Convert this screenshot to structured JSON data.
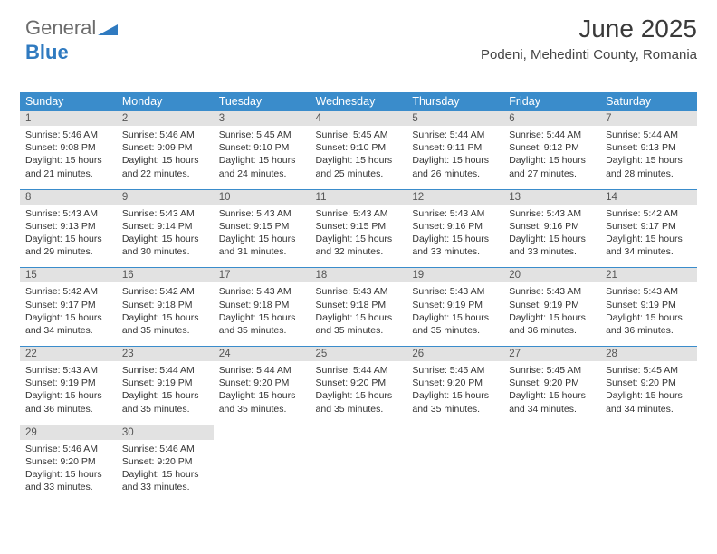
{
  "logo": {
    "word1": "General",
    "word2": "Blue"
  },
  "header": {
    "title": "June 2025",
    "subtitle": "Podeni, Mehedinti County, Romania"
  },
  "style": {
    "header_bg": "#3a8ccb",
    "header_fg": "#ffffff",
    "daynum_bg": "#e2e2e2",
    "daynum_fg": "#555555",
    "body_fg": "#333333",
    "divider": "#3a8ccb",
    "page_bg": "#ffffff",
    "title_fontsize": 28,
    "subtitle_fontsize": 15,
    "dayhead_fontsize": 12.5,
    "daynum_fontsize": 11.5,
    "cell_fontsize": 10.5
  },
  "weekdays": [
    "Sunday",
    "Monday",
    "Tuesday",
    "Wednesday",
    "Thursday",
    "Friday",
    "Saturday"
  ],
  "weeks": [
    [
      {
        "n": "1",
        "sr": "Sunrise: 5:46 AM",
        "ss": "Sunset: 9:08 PM",
        "dl": "Daylight: 15 hours and 21 minutes."
      },
      {
        "n": "2",
        "sr": "Sunrise: 5:46 AM",
        "ss": "Sunset: 9:09 PM",
        "dl": "Daylight: 15 hours and 22 minutes."
      },
      {
        "n": "3",
        "sr": "Sunrise: 5:45 AM",
        "ss": "Sunset: 9:10 PM",
        "dl": "Daylight: 15 hours and 24 minutes."
      },
      {
        "n": "4",
        "sr": "Sunrise: 5:45 AM",
        "ss": "Sunset: 9:10 PM",
        "dl": "Daylight: 15 hours and 25 minutes."
      },
      {
        "n": "5",
        "sr": "Sunrise: 5:44 AM",
        "ss": "Sunset: 9:11 PM",
        "dl": "Daylight: 15 hours and 26 minutes."
      },
      {
        "n": "6",
        "sr": "Sunrise: 5:44 AM",
        "ss": "Sunset: 9:12 PM",
        "dl": "Daylight: 15 hours and 27 minutes."
      },
      {
        "n": "7",
        "sr": "Sunrise: 5:44 AM",
        "ss": "Sunset: 9:13 PM",
        "dl": "Daylight: 15 hours and 28 minutes."
      }
    ],
    [
      {
        "n": "8",
        "sr": "Sunrise: 5:43 AM",
        "ss": "Sunset: 9:13 PM",
        "dl": "Daylight: 15 hours and 29 minutes."
      },
      {
        "n": "9",
        "sr": "Sunrise: 5:43 AM",
        "ss": "Sunset: 9:14 PM",
        "dl": "Daylight: 15 hours and 30 minutes."
      },
      {
        "n": "10",
        "sr": "Sunrise: 5:43 AM",
        "ss": "Sunset: 9:15 PM",
        "dl": "Daylight: 15 hours and 31 minutes."
      },
      {
        "n": "11",
        "sr": "Sunrise: 5:43 AM",
        "ss": "Sunset: 9:15 PM",
        "dl": "Daylight: 15 hours and 32 minutes."
      },
      {
        "n": "12",
        "sr": "Sunrise: 5:43 AM",
        "ss": "Sunset: 9:16 PM",
        "dl": "Daylight: 15 hours and 33 minutes."
      },
      {
        "n": "13",
        "sr": "Sunrise: 5:43 AM",
        "ss": "Sunset: 9:16 PM",
        "dl": "Daylight: 15 hours and 33 minutes."
      },
      {
        "n": "14",
        "sr": "Sunrise: 5:42 AM",
        "ss": "Sunset: 9:17 PM",
        "dl": "Daylight: 15 hours and 34 minutes."
      }
    ],
    [
      {
        "n": "15",
        "sr": "Sunrise: 5:42 AM",
        "ss": "Sunset: 9:17 PM",
        "dl": "Daylight: 15 hours and 34 minutes."
      },
      {
        "n": "16",
        "sr": "Sunrise: 5:42 AM",
        "ss": "Sunset: 9:18 PM",
        "dl": "Daylight: 15 hours and 35 minutes."
      },
      {
        "n": "17",
        "sr": "Sunrise: 5:43 AM",
        "ss": "Sunset: 9:18 PM",
        "dl": "Daylight: 15 hours and 35 minutes."
      },
      {
        "n": "18",
        "sr": "Sunrise: 5:43 AM",
        "ss": "Sunset: 9:18 PM",
        "dl": "Daylight: 15 hours and 35 minutes."
      },
      {
        "n": "19",
        "sr": "Sunrise: 5:43 AM",
        "ss": "Sunset: 9:19 PM",
        "dl": "Daylight: 15 hours and 35 minutes."
      },
      {
        "n": "20",
        "sr": "Sunrise: 5:43 AM",
        "ss": "Sunset: 9:19 PM",
        "dl": "Daylight: 15 hours and 36 minutes."
      },
      {
        "n": "21",
        "sr": "Sunrise: 5:43 AM",
        "ss": "Sunset: 9:19 PM",
        "dl": "Daylight: 15 hours and 36 minutes."
      }
    ],
    [
      {
        "n": "22",
        "sr": "Sunrise: 5:43 AM",
        "ss": "Sunset: 9:19 PM",
        "dl": "Daylight: 15 hours and 36 minutes."
      },
      {
        "n": "23",
        "sr": "Sunrise: 5:44 AM",
        "ss": "Sunset: 9:19 PM",
        "dl": "Daylight: 15 hours and 35 minutes."
      },
      {
        "n": "24",
        "sr": "Sunrise: 5:44 AM",
        "ss": "Sunset: 9:20 PM",
        "dl": "Daylight: 15 hours and 35 minutes."
      },
      {
        "n": "25",
        "sr": "Sunrise: 5:44 AM",
        "ss": "Sunset: 9:20 PM",
        "dl": "Daylight: 15 hours and 35 minutes."
      },
      {
        "n": "26",
        "sr": "Sunrise: 5:45 AM",
        "ss": "Sunset: 9:20 PM",
        "dl": "Daylight: 15 hours and 35 minutes."
      },
      {
        "n": "27",
        "sr": "Sunrise: 5:45 AM",
        "ss": "Sunset: 9:20 PM",
        "dl": "Daylight: 15 hours and 34 minutes."
      },
      {
        "n": "28",
        "sr": "Sunrise: 5:45 AM",
        "ss": "Sunset: 9:20 PM",
        "dl": "Daylight: 15 hours and 34 minutes."
      }
    ],
    [
      {
        "n": "29",
        "sr": "Sunrise: 5:46 AM",
        "ss": "Sunset: 9:20 PM",
        "dl": "Daylight: 15 hours and 33 minutes."
      },
      {
        "n": "30",
        "sr": "Sunrise: 5:46 AM",
        "ss": "Sunset: 9:20 PM",
        "dl": "Daylight: 15 hours and 33 minutes."
      },
      null,
      null,
      null,
      null,
      null
    ]
  ]
}
